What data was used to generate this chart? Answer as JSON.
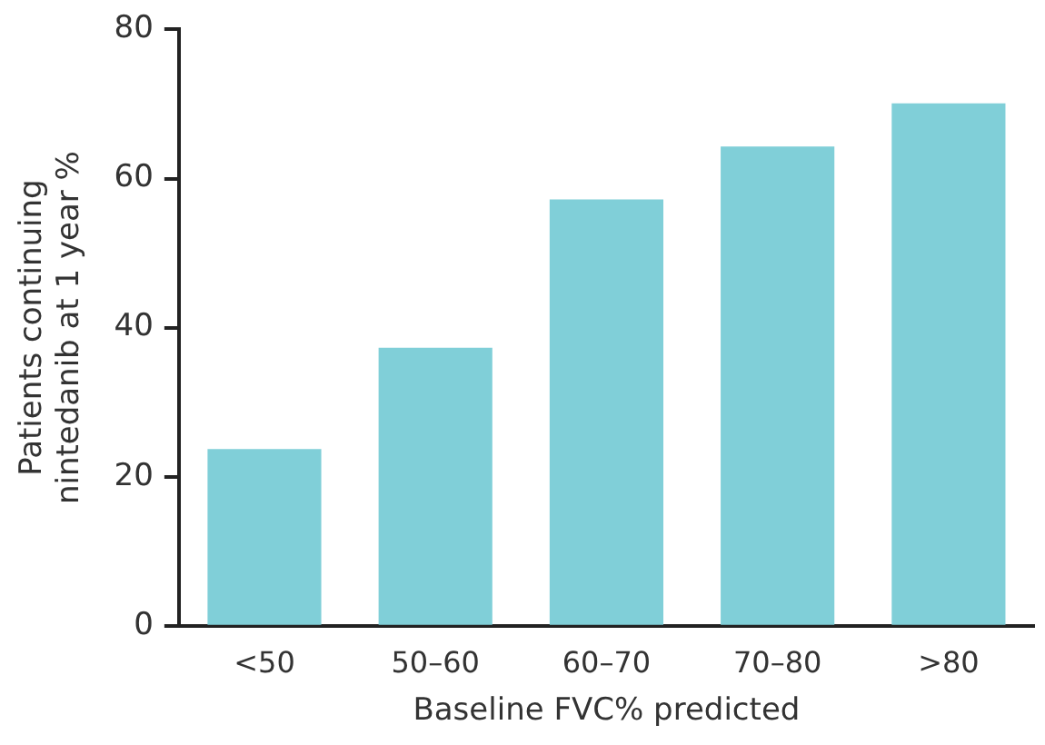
{
  "chart_data": {
    "type": "bar",
    "xlabel": "Baseline FVC% predicted",
    "ylabel": "Patients continuing\nnintedanib at 1 year %",
    "categories": [
      "<50",
      "50–60",
      "60–70",
      "70–80",
      ">80"
    ],
    "values": [
      23.7,
      37.3,
      57.2,
      64.3,
      70.1
    ],
    "color": "#80cfd8",
    "ylim": [
      0,
      80
    ],
    "yticks": [
      0,
      20,
      40,
      60,
      80
    ],
    "grid": false,
    "legend": false
  }
}
